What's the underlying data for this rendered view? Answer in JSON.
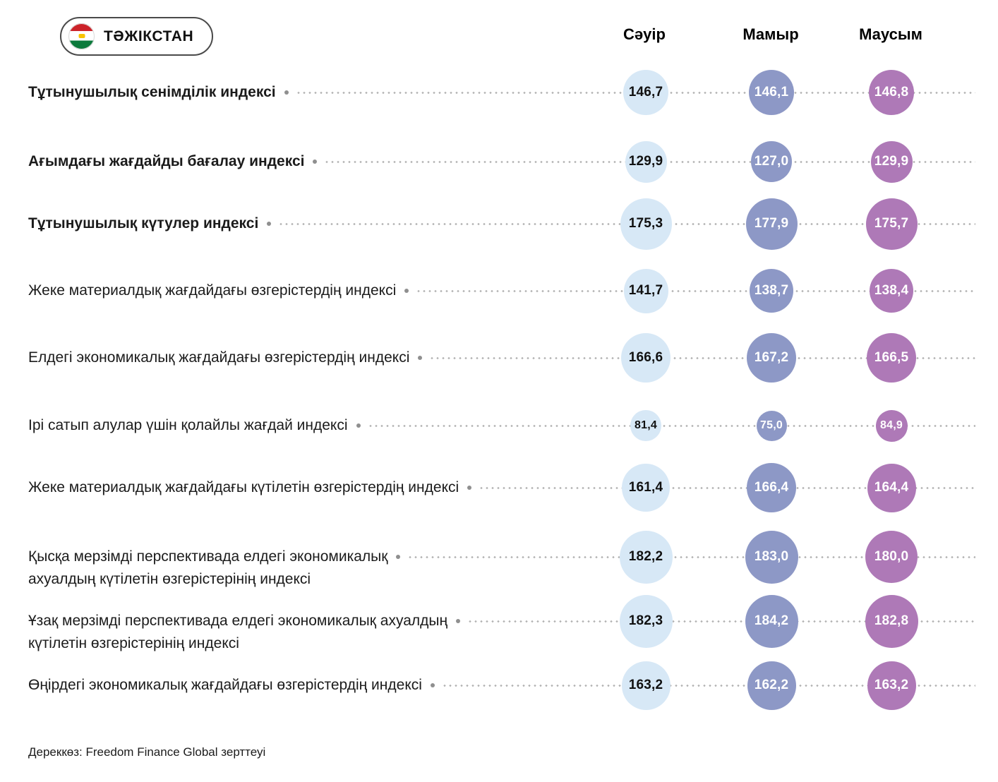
{
  "header": {
    "country_label": "ТӘЖІКСТАН",
    "flag_icon": "tajikistan-flag-icon",
    "months": [
      "Сәуір",
      "Мамыр",
      "Маусым"
    ]
  },
  "chart_data": {
    "type": "table",
    "title": "Тұтынушылық сенімділік индекстері — Тәжікстан",
    "columns": [
      "Сәуір",
      "Мамыр",
      "Маусым"
    ],
    "column_circle_colors": [
      "#d7e8f6",
      "#8d98c6",
      "#ae79b7"
    ],
    "column_text_colors": [
      "#111111",
      "#ffffff",
      "#ffffff"
    ],
    "rows": [
      {
        "label": "Тұтынушылық сенімділік индексі",
        "bold": true,
        "values": [
          "146,7",
          "146,1",
          "146,8"
        ]
      },
      {
        "label": "Ағымдағы жағдайды бағалау индексі",
        "bold": true,
        "values": [
          "129,9",
          "127,0",
          "129,9"
        ]
      },
      {
        "label": "Тұтынушылық күтулер индексі",
        "bold": true,
        "values": [
          "175,3",
          "177,9",
          "175,7"
        ]
      },
      {
        "label": "Жеке материалдық жағдайдағы өзгерістердің индексі",
        "bold": false,
        "values": [
          "141,7",
          "138,7",
          "138,4"
        ]
      },
      {
        "label": "Елдегі экономикалық жағдайдағы өзгерістердің индексі",
        "bold": false,
        "values": [
          "166,6",
          "167,2",
          "166,5"
        ]
      },
      {
        "label": "Ірі сатып алулар үшін қолайлы жағдай индексі",
        "bold": false,
        "values": [
          "81,4",
          "75,0",
          "84,9"
        ]
      },
      {
        "label": "Жеке материалдық жағдайдағы күтілетін өзгерістердің индексі",
        "bold": false,
        "values": [
          "161,4",
          "166,4",
          "164,4"
        ]
      },
      {
        "label": "Қысқа мерзімді перспективада елдегі экономикалық\nахуалдың күтілетін өзгерістерінің индексі",
        "bold": false,
        "values": [
          "182,2",
          "183,0",
          "180,0"
        ]
      },
      {
        "label": "Ұзақ мерзімді перспективада елдегі экономикалық ахуалдың\nкүтілетін өзгерістерінің индексі",
        "bold": false,
        "values": [
          "182,3",
          "184,2",
          "182,8"
        ]
      },
      {
        "label": "Өңірдегі экономикалық жағдайдағы өзгерістердің индексі",
        "bold": false,
        "values": [
          "163,2",
          "162,2",
          "163,2"
        ]
      }
    ]
  },
  "footer": {
    "source": "Дереккөз: Freedom Finance Global зерттеуі"
  }
}
